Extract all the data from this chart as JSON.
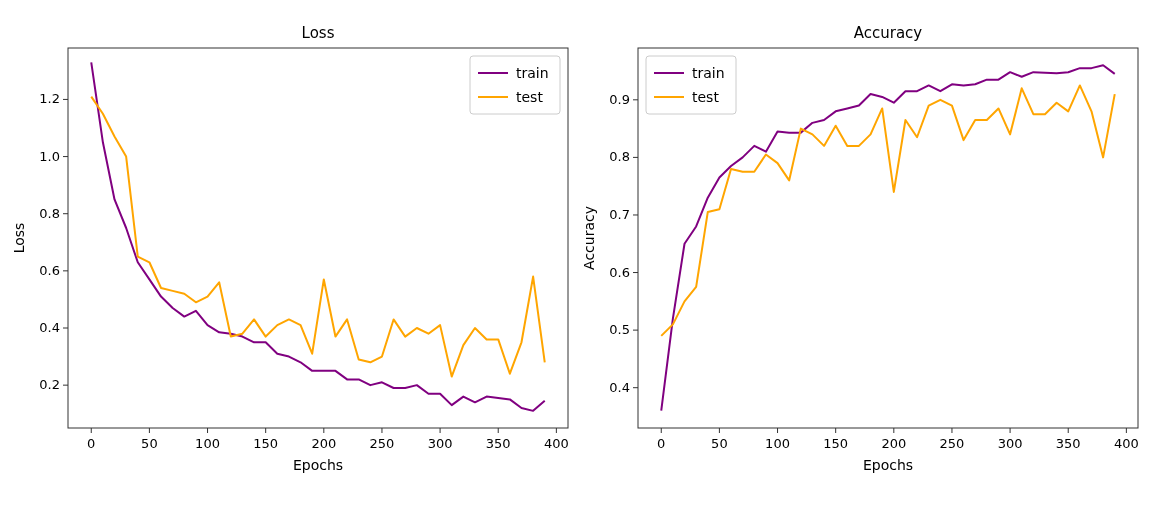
{
  "chart_data": [
    {
      "type": "line",
      "title": "Loss",
      "xlabel": "Epochs",
      "ylabel": "Loss",
      "x": [
        0,
        10,
        20,
        30,
        40,
        50,
        60,
        70,
        80,
        90,
        100,
        110,
        120,
        130,
        140,
        150,
        160,
        170,
        180,
        190,
        200,
        210,
        220,
        230,
        240,
        250,
        260,
        270,
        280,
        290,
        300,
        310,
        320,
        330,
        340,
        350,
        360,
        370,
        380,
        390
      ],
      "xlim": [
        -20,
        410
      ],
      "xticks": [
        0,
        50,
        100,
        150,
        200,
        250,
        300,
        350,
        400
      ],
      "ylim": [
        0.05,
        1.38
      ],
      "yticks": [
        {
          "value": 0.2,
          "label": "0.2"
        },
        {
          "value": 0.4,
          "label": "0.4"
        },
        {
          "value": 0.6,
          "label": "0.6"
        },
        {
          "value": 0.8,
          "label": "0.8"
        },
        {
          "value": 1.0,
          "label": "1.0"
        },
        {
          "value": 1.2,
          "label": "1.2"
        }
      ],
      "legend": "top right",
      "grid": false,
      "series": [
        {
          "name": "train",
          "color": "#800080",
          "values": [
            1.33,
            1.05,
            0.85,
            0.75,
            0.63,
            0.57,
            0.51,
            0.47,
            0.44,
            0.46,
            0.41,
            0.385,
            0.38,
            0.37,
            0.35,
            0.35,
            0.31,
            0.3,
            0.28,
            0.25,
            0.25,
            0.25,
            0.22,
            0.22,
            0.2,
            0.21,
            0.19,
            0.19,
            0.2,
            0.17,
            0.17,
            0.13,
            0.16,
            0.14,
            0.16,
            0.155,
            0.15,
            0.12,
            0.11,
            0.145
          ]
        },
        {
          "name": "test",
          "color": "#ffa500",
          "values": [
            1.21,
            1.15,
            1.07,
            1.0,
            0.65,
            0.63,
            0.54,
            0.53,
            0.52,
            0.49,
            0.51,
            0.56,
            0.37,
            0.38,
            0.43,
            0.37,
            0.41,
            0.43,
            0.41,
            0.31,
            0.57,
            0.37,
            0.43,
            0.29,
            0.28,
            0.3,
            0.43,
            0.37,
            0.4,
            0.38,
            0.41,
            0.23,
            0.34,
            0.4,
            0.36,
            0.36,
            0.24,
            0.35,
            0.58,
            0.28
          ]
        }
      ]
    },
    {
      "type": "line",
      "title": "Accuracy",
      "xlabel": "Epochs",
      "ylabel": "Accuracy",
      "x": [
        0,
        10,
        20,
        30,
        40,
        50,
        60,
        70,
        80,
        90,
        100,
        110,
        120,
        130,
        140,
        150,
        160,
        170,
        180,
        190,
        200,
        210,
        220,
        230,
        240,
        250,
        260,
        270,
        280,
        290,
        300,
        310,
        320,
        330,
        340,
        350,
        360,
        370,
        380,
        390
      ],
      "xlim": [
        -20,
        410
      ],
      "xticks": [
        0,
        50,
        100,
        150,
        200,
        250,
        300,
        350,
        400
      ],
      "ylim": [
        0.33,
        0.99
      ],
      "yticks": [
        0.4,
        0.5,
        0.6,
        0.7,
        0.8,
        0.9
      ],
      "legend": "top left",
      "grid": false,
      "series": [
        {
          "name": "train",
          "color": "#800080",
          "values": [
            0.36,
            0.52,
            0.65,
            0.68,
            0.73,
            0.765,
            0.785,
            0.8,
            0.82,
            0.81,
            0.845,
            0.843,
            0.843,
            0.86,
            0.865,
            0.88,
            0.885,
            0.89,
            0.91,
            0.905,
            0.895,
            0.915,
            0.915,
            0.925,
            0.915,
            0.927,
            0.925,
            0.927,
            0.935,
            0.935,
            0.948,
            0.94,
            0.948,
            0.947,
            0.946,
            0.948,
            0.955,
            0.955,
            0.96,
            0.945
          ]
        },
        {
          "name": "test",
          "color": "#ffa500",
          "values": [
            0.49,
            0.51,
            0.55,
            0.575,
            0.705,
            0.71,
            0.78,
            0.775,
            0.775,
            0.805,
            0.79,
            0.76,
            0.85,
            0.84,
            0.82,
            0.855,
            0.82,
            0.82,
            0.84,
            0.885,
            0.74,
            0.865,
            0.835,
            0.89,
            0.9,
            0.89,
            0.83,
            0.865,
            0.865,
            0.885,
            0.84,
            0.92,
            0.875,
            0.875,
            0.895,
            0.88,
            0.925,
            0.88,
            0.8,
            0.91
          ]
        }
      ]
    }
  ]
}
